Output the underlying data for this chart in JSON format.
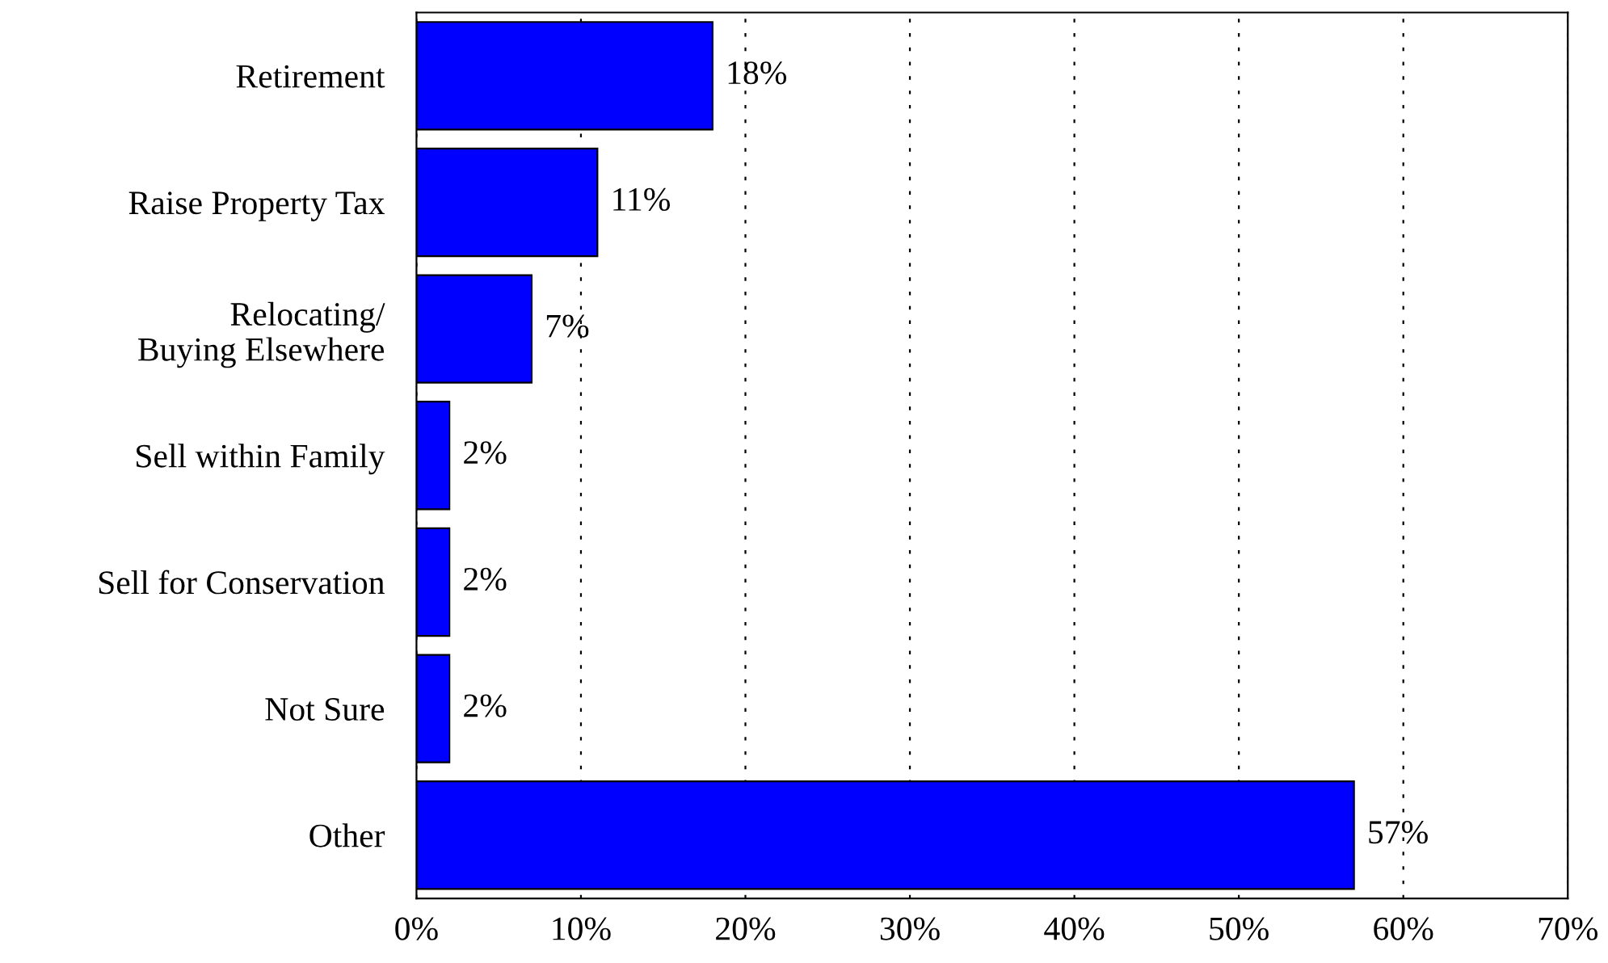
{
  "chart_data": {
    "type": "bar",
    "orientation": "horizontal",
    "categories": [
      "Retirement",
      "Raise Property Tax",
      "Relocating/\nBuying Elsewhere",
      "Sell within Family",
      "Sell for Conservation",
      "Not Sure",
      "Other"
    ],
    "values": [
      18,
      11,
      7,
      2,
      2,
      2,
      57
    ],
    "value_labels": [
      "18%",
      "11%",
      "7%",
      "2%",
      "2%",
      "2%",
      "57%"
    ],
    "color": "#0000ff",
    "xlim": [
      0,
      70
    ],
    "xticks": [
      {
        "value": 0,
        "label": "0%"
      },
      {
        "value": 10,
        "label": "10%"
      },
      {
        "value": 20,
        "label": "20%"
      },
      {
        "value": 30,
        "label": "30%"
      },
      {
        "value": 40,
        "label": "40%"
      },
      {
        "value": 50,
        "label": "50%"
      },
      {
        "value": 60,
        "label": "60%"
      },
      {
        "value": 70,
        "label": "70%"
      }
    ],
    "grid": "x",
    "legend": false
  }
}
